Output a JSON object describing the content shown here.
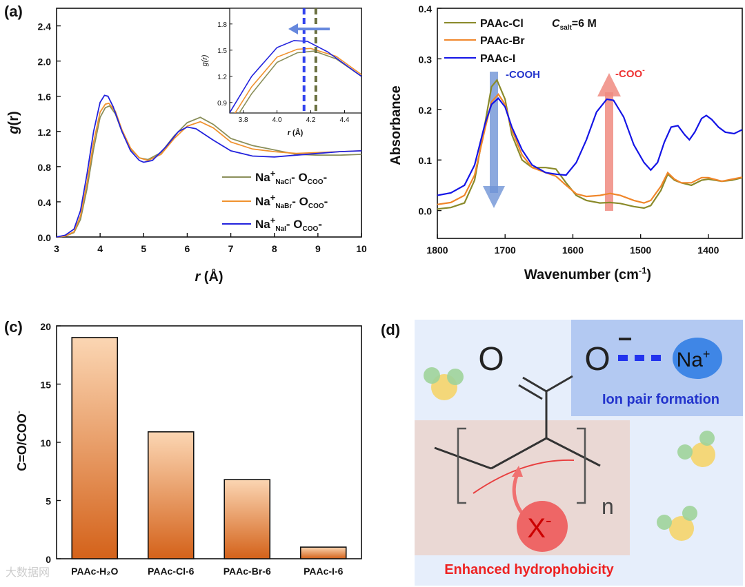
{
  "panel_labels": {
    "a": "(a)",
    "b": "",
    "c": "(c)",
    "d": "(d)"
  },
  "chart_data": [
    {
      "id": "a",
      "type": "line",
      "xlabel_italic": "r",
      "xlabel_unit": " (Å)",
      "ylabel_italic": "g",
      "ylabel_rest": "(r)",
      "xlim": [
        3,
        10
      ],
      "ylim": [
        0,
        2.6
      ],
      "xticks": [
        3,
        4,
        5,
        6,
        7,
        8,
        9,
        10
      ],
      "yticks": [
        0.0,
        0.4,
        0.8,
        1.2,
        1.6,
        2.0,
        2.4
      ],
      "legend": {
        "prefix": "Na",
        "sup": "+",
        "label_parts": [
          {
            "sub": "NaCl",
            "tail": "- O",
            "tail_sub": "COO",
            "end": "-"
          },
          {
            "sub": "NaBr",
            "tail": "- O",
            "tail_sub": "COO",
            "end": "-"
          },
          {
            "sub": "NaI",
            "tail": "- O",
            "tail_sub": "COO",
            "end": "-"
          }
        ]
      },
      "series": [
        {
          "name": "Na+ NaCl - OCOO-",
          "color": "#8a8f5a",
          "points": [
            [
              3.0,
              0.0
            ],
            [
              3.2,
              0.01
            ],
            [
              3.4,
              0.05
            ],
            [
              3.55,
              0.2
            ],
            [
              3.7,
              0.55
            ],
            [
              3.85,
              1.0
            ],
            [
              4.0,
              1.36
            ],
            [
              4.12,
              1.47
            ],
            [
              4.22,
              1.49
            ],
            [
              4.35,
              1.4
            ],
            [
              4.5,
              1.2
            ],
            [
              4.7,
              1.0
            ],
            [
              4.9,
              0.9
            ],
            [
              5.1,
              0.88
            ],
            [
              5.4,
              0.96
            ],
            [
              5.7,
              1.15
            ],
            [
              6.0,
              1.3
            ],
            [
              6.3,
              1.36
            ],
            [
              6.6,
              1.28
            ],
            [
              7.0,
              1.12
            ],
            [
              7.5,
              1.04
            ],
            [
              8.0,
              0.99
            ],
            [
              8.5,
              0.94
            ],
            [
              9.0,
              0.93
            ],
            [
              9.5,
              0.93
            ],
            [
              10.0,
              0.94
            ]
          ]
        },
        {
          "name": "Na+ NaBr - OCOO-",
          "color": "#f0922e",
          "points": [
            [
              3.0,
              0.0
            ],
            [
              3.2,
              0.01
            ],
            [
              3.4,
              0.06
            ],
            [
              3.55,
              0.24
            ],
            [
              3.7,
              0.62
            ],
            [
              3.85,
              1.08
            ],
            [
              4.0,
              1.42
            ],
            [
              4.12,
              1.51
            ],
            [
              4.2,
              1.52
            ],
            [
              4.35,
              1.43
            ],
            [
              4.5,
              1.22
            ],
            [
              4.7,
              1.01
            ],
            [
              4.9,
              0.9
            ],
            [
              5.1,
              0.87
            ],
            [
              5.4,
              0.94
            ],
            [
              5.7,
              1.12
            ],
            [
              6.0,
              1.26
            ],
            [
              6.3,
              1.31
            ],
            [
              6.6,
              1.24
            ],
            [
              7.0,
              1.08
            ],
            [
              7.5,
              1.0
            ],
            [
              8.0,
              0.97
            ],
            [
              8.5,
              0.95
            ],
            [
              9.0,
              0.96
            ],
            [
              9.5,
              0.97
            ],
            [
              10.0,
              0.98
            ]
          ]
        },
        {
          "name": "Na+ NaI - OCOO-",
          "color": "#2222dd",
          "points": [
            [
              3.0,
              0.0
            ],
            [
              3.2,
              0.02
            ],
            [
              3.4,
              0.09
            ],
            [
              3.55,
              0.3
            ],
            [
              3.7,
              0.72
            ],
            [
              3.85,
              1.2
            ],
            [
              4.0,
              1.53
            ],
            [
              4.1,
              1.61
            ],
            [
              4.18,
              1.6
            ],
            [
              4.3,
              1.48
            ],
            [
              4.5,
              1.2
            ],
            [
              4.7,
              0.98
            ],
            [
              4.9,
              0.87
            ],
            [
              5.0,
              0.85
            ],
            [
              5.2,
              0.87
            ],
            [
              5.5,
              1.02
            ],
            [
              5.8,
              1.2
            ],
            [
              6.0,
              1.25
            ],
            [
              6.2,
              1.23
            ],
            [
              6.6,
              1.1
            ],
            [
              7.0,
              0.98
            ],
            [
              7.5,
              0.92
            ],
            [
              8.0,
              0.91
            ],
            [
              8.5,
              0.93
            ],
            [
              9.0,
              0.95
            ],
            [
              9.5,
              0.97
            ],
            [
              10.0,
              0.98
            ]
          ]
        }
      ],
      "inset": {
        "xlabel_italic": "r",
        "xlabel_unit": " (Å)",
        "ylabel": "g(r)",
        "xlim": [
          3.72,
          4.5
        ],
        "ylim": [
          0.78,
          1.98
        ],
        "xticks": [
          3.8,
          4.0,
          4.2,
          4.4
        ],
        "xtick_labels": [
          "3.8",
          "4.0",
          "4.2",
          "4.4"
        ],
        "yticks": [
          0.9,
          1.2,
          1.5,
          1.8
        ],
        "ytick_labels": [
          "0.9",
          "1.2",
          "1.5",
          "1.8"
        ],
        "vlines": [
          {
            "x": 4.16,
            "color": "#3344ee"
          },
          {
            "x": 4.23,
            "color": "#6a7040"
          }
        ],
        "arrow_color": "#6688dd"
      }
    },
    {
      "id": "b",
      "type": "line",
      "xlabel": "Wavenumber (cm",
      "xlabel_sup": "-1",
      "xlabel_end": ")",
      "ylabel": "Absorbance",
      "xlim": [
        1800,
        1350
      ],
      "ylim": [
        -0.055,
        0.4
      ],
      "xticks": [
        1800,
        1700,
        1600,
        1500,
        1400
      ],
      "yticks": [
        0.0,
        0.1,
        0.2,
        0.3,
        0.4
      ],
      "legend_note": {
        "c": "C",
        "sub": "salt",
        "rest": "=6  M"
      },
      "annotations": [
        {
          "text": "-COOH",
          "sup": "",
          "color": "#2233cc"
        },
        {
          "text": "-COO",
          "sup": "-",
          "color": "#ee3333"
        }
      ],
      "series": [
        {
          "name": "PAAc-Cl",
          "color": "#8a8a2a",
          "points": [
            [
              1800,
              0.003
            ],
            [
              1780,
              0.006
            ],
            [
              1760,
              0.015
            ],
            [
              1745,
              0.06
            ],
            [
              1730,
              0.17
            ],
            [
              1720,
              0.245
            ],
            [
              1712,
              0.258
            ],
            [
              1700,
              0.22
            ],
            [
              1690,
              0.15
            ],
            [
              1675,
              0.1
            ],
            [
              1660,
              0.085
            ],
            [
              1640,
              0.085
            ],
            [
              1625,
              0.082
            ],
            [
              1610,
              0.055
            ],
            [
              1595,
              0.03
            ],
            [
              1580,
              0.02
            ],
            [
              1560,
              0.015
            ],
            [
              1545,
              0.016
            ],
            [
              1530,
              0.014
            ],
            [
              1510,
              0.008
            ],
            [
              1495,
              0.005
            ],
            [
              1485,
              0.01
            ],
            [
              1470,
              0.04
            ],
            [
              1460,
              0.072
            ],
            [
              1450,
              0.06
            ],
            [
              1440,
              0.055
            ],
            [
              1425,
              0.05
            ],
            [
              1410,
              0.06
            ],
            [
              1400,
              0.062
            ],
            [
              1380,
              0.058
            ],
            [
              1365,
              0.06
            ],
            [
              1350,
              0.065
            ]
          ]
        },
        {
          "name": "PAAc-Br",
          "color": "#f0862a",
          "points": [
            [
              1800,
              0.012
            ],
            [
              1780,
              0.016
            ],
            [
              1760,
              0.03
            ],
            [
              1745,
              0.07
            ],
            [
              1730,
              0.16
            ],
            [
              1720,
              0.215
            ],
            [
              1710,
              0.23
            ],
            [
              1700,
              0.21
            ],
            [
              1690,
              0.16
            ],
            [
              1675,
              0.11
            ],
            [
              1660,
              0.085
            ],
            [
              1640,
              0.075
            ],
            [
              1625,
              0.068
            ],
            [
              1610,
              0.05
            ],
            [
              1595,
              0.033
            ],
            [
              1580,
              0.028
            ],
            [
              1560,
              0.03
            ],
            [
              1545,
              0.034
            ],
            [
              1530,
              0.03
            ],
            [
              1510,
              0.02
            ],
            [
              1495,
              0.015
            ],
            [
              1485,
              0.02
            ],
            [
              1470,
              0.048
            ],
            [
              1460,
              0.075
            ],
            [
              1450,
              0.062
            ],
            [
              1440,
              0.055
            ],
            [
              1425,
              0.055
            ],
            [
              1410,
              0.065
            ],
            [
              1400,
              0.065
            ],
            [
              1380,
              0.058
            ],
            [
              1365,
              0.062
            ],
            [
              1350,
              0.066
            ]
          ]
        },
        {
          "name": "PAAc-I",
          "color": "#1414e6",
          "points": [
            [
              1800,
              0.03
            ],
            [
              1780,
              0.035
            ],
            [
              1760,
              0.05
            ],
            [
              1745,
              0.09
            ],
            [
              1730,
              0.17
            ],
            [
              1720,
              0.21
            ],
            [
              1710,
              0.222
            ],
            [
              1700,
              0.205
            ],
            [
              1690,
              0.165
            ],
            [
              1675,
              0.12
            ],
            [
              1660,
              0.09
            ],
            [
              1640,
              0.075
            ],
            [
              1625,
              0.072
            ],
            [
              1610,
              0.07
            ],
            [
              1595,
              0.095
            ],
            [
              1580,
              0.14
            ],
            [
              1565,
              0.195
            ],
            [
              1550,
              0.22
            ],
            [
              1540,
              0.218
            ],
            [
              1525,
              0.185
            ],
            [
              1510,
              0.13
            ],
            [
              1495,
              0.095
            ],
            [
              1485,
              0.08
            ],
            [
              1475,
              0.095
            ],
            [
              1465,
              0.135
            ],
            [
              1455,
              0.165
            ],
            [
              1445,
              0.168
            ],
            [
              1435,
              0.15
            ],
            [
              1428,
              0.14
            ],
            [
              1420,
              0.155
            ],
            [
              1410,
              0.182
            ],
            [
              1403,
              0.188
            ],
            [
              1395,
              0.18
            ],
            [
              1385,
              0.165
            ],
            [
              1375,
              0.155
            ],
            [
              1362,
              0.152
            ],
            [
              1350,
              0.16
            ]
          ]
        }
      ]
    },
    {
      "id": "c",
      "type": "bar",
      "ylabel": "C=O/COO",
      "ylabel_sup": "-",
      "ylim": [
        0,
        20
      ],
      "yticks": [
        0,
        5,
        10,
        15,
        20
      ],
      "categories": [
        "PAAc-H₂O",
        "PAAc-Cl-6",
        "PAAc-Br-6",
        "PAAc-I-6"
      ],
      "values": [
        19.0,
        10.9,
        6.8,
        1.0
      ],
      "bar_colors": {
        "top": "#fbd6b3",
        "bottom": "#d4621a"
      }
    }
  ],
  "diagram_d": {
    "o_left": "O",
    "o_right": "O",
    "o_charge": "−",
    "cation": "Na",
    "cation_charge": "+",
    "ion_pair_label": "Ion pair  formation",
    "subscript_n": "n",
    "anion": "X",
    "anion_charge": "-",
    "hydrophobic_label": "Enhanced hydrophobicity"
  },
  "watermark": "大数据网"
}
